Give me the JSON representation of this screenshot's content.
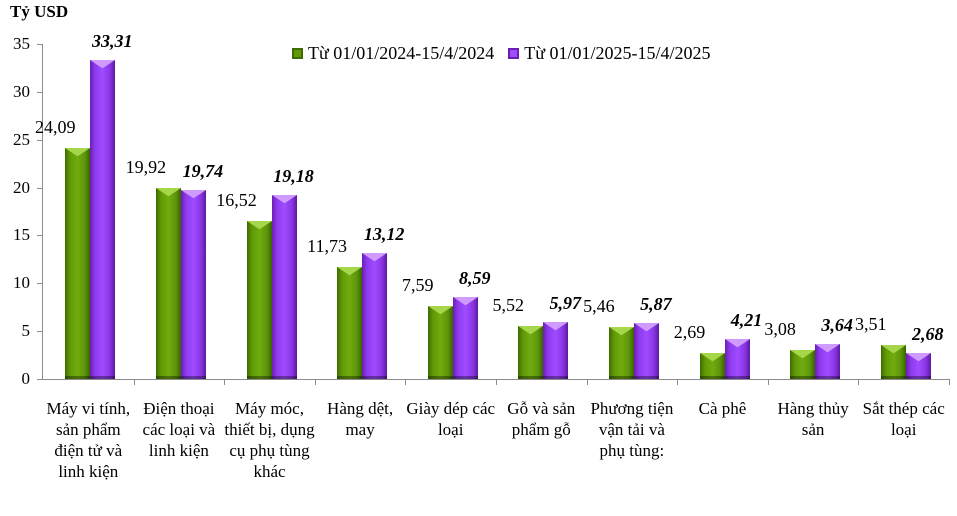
{
  "chart_data": {
    "type": "bar",
    "title": "",
    "unit_label": "Tỷ USD",
    "xlabel": "",
    "ylabel": "Tỷ USD",
    "ylim": [
      0,
      35
    ],
    "yticks": [
      0,
      5,
      10,
      15,
      20,
      25,
      30,
      35
    ],
    "grid": false,
    "legend_position": "top-right",
    "categories": [
      "Máy vi tính, sản phẩm điện tử và linh kiện",
      "Điện thoại các loại và linh kiện",
      "Máy móc, thiết bị, dụng cụ phụ tùng khác",
      "Hàng dệt, may",
      "Giày dép các loại",
      "Gỗ và sản phẩm gỗ",
      "Phương tiện vận tải và phụ tùng:",
      "Cà phê",
      "Hàng thủy sản",
      "Sắt thép các loại"
    ],
    "series": [
      {
        "name": "Từ 01/01/2024-15/4/2024",
        "color": "#5f9a06",
        "values": [
          24.09,
          19.92,
          16.52,
          11.73,
          7.59,
          5.52,
          5.46,
          2.69,
          3.08,
          3.51
        ],
        "labels": [
          "24,09",
          "19,92",
          "16,52",
          "11,73",
          "7,59",
          "5,52",
          "5,46",
          "2,69",
          "3,08",
          "3,51"
        ]
      },
      {
        "name": "Từ 01/01/2025-15/4/2025",
        "color": "#9f4cff",
        "values": [
          33.31,
          19.74,
          19.18,
          13.12,
          8.59,
          5.97,
          5.87,
          4.21,
          3.64,
          2.68
        ],
        "labels": [
          "33,31",
          "19,74",
          "19,18",
          "13,12",
          "8,59",
          "5,97",
          "5,87",
          "4,21",
          "3,64",
          "2,68"
        ]
      }
    ]
  }
}
